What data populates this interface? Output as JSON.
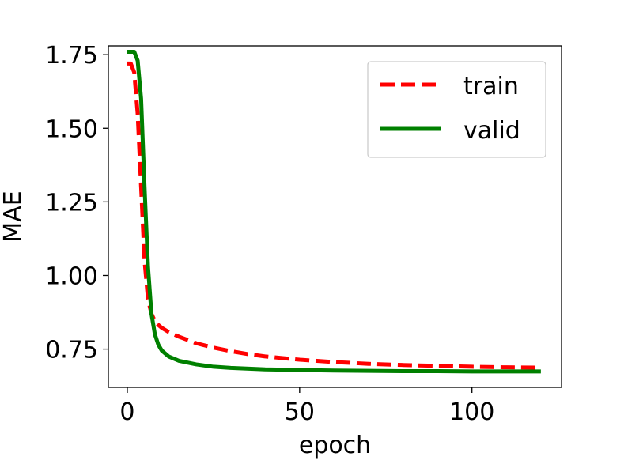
{
  "chart_data": {
    "type": "line",
    "title": "",
    "xlabel": "epoch",
    "ylabel": "MAE",
    "xlim": [
      -5.5,
      126
    ],
    "ylim": [
      0.62,
      1.78
    ],
    "xticks": [
      0,
      50,
      100
    ],
    "xtick_labels": [
      "0",
      "50",
      "100"
    ],
    "yticks": [
      0.75,
      1.0,
      1.25,
      1.5,
      1.75
    ],
    "ytick_labels": [
      "0.75",
      "1.00",
      "1.25",
      "1.50",
      "1.75"
    ],
    "grid": false,
    "legend_position": "top-right",
    "series": [
      {
        "name": "train",
        "color": "#ff0000",
        "style": "dashed",
        "points": [
          [
            0,
            1.72
          ],
          [
            1,
            1.72
          ],
          [
            2,
            1.69
          ],
          [
            3,
            1.55
          ],
          [
            4,
            1.3
          ],
          [
            5,
            1.05
          ],
          [
            6,
            0.92
          ],
          [
            7,
            0.87
          ],
          [
            8,
            0.845
          ],
          [
            9,
            0.832
          ],
          [
            10,
            0.822
          ],
          [
            12,
            0.808
          ],
          [
            15,
            0.792
          ],
          [
            20,
            0.77
          ],
          [
            25,
            0.755
          ],
          [
            30,
            0.743
          ],
          [
            35,
            0.733
          ],
          [
            40,
            0.725
          ],
          [
            50,
            0.714
          ],
          [
            60,
            0.706
          ],
          [
            70,
            0.7
          ],
          [
            80,
            0.696
          ],
          [
            90,
            0.693
          ],
          [
            100,
            0.69
          ],
          [
            110,
            0.688
          ],
          [
            120,
            0.687
          ]
        ]
      },
      {
        "name": "valid",
        "color": "#008000",
        "style": "solid",
        "points": [
          [
            0,
            1.76
          ],
          [
            1,
            1.76
          ],
          [
            2,
            1.76
          ],
          [
            3,
            1.73
          ],
          [
            4,
            1.6
          ],
          [
            5,
            1.3
          ],
          [
            6,
            1.03
          ],
          [
            7,
            0.87
          ],
          [
            8,
            0.8
          ],
          [
            9,
            0.765
          ],
          [
            10,
            0.745
          ],
          [
            12,
            0.725
          ],
          [
            15,
            0.71
          ],
          [
            20,
            0.698
          ],
          [
            25,
            0.69
          ],
          [
            30,
            0.686
          ],
          [
            40,
            0.681
          ],
          [
            50,
            0.679
          ],
          [
            60,
            0.677
          ],
          [
            70,
            0.676
          ],
          [
            80,
            0.675
          ],
          [
            90,
            0.675
          ],
          [
            100,
            0.674
          ],
          [
            110,
            0.674
          ],
          [
            120,
            0.674
          ]
        ]
      }
    ]
  }
}
